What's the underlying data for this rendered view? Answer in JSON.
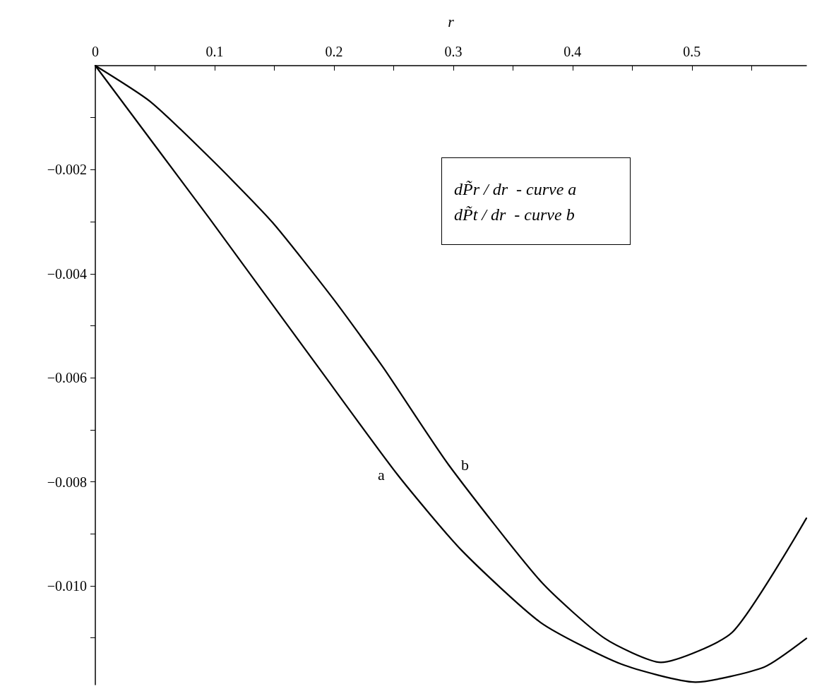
{
  "chart_data": {
    "type": "line",
    "xlabel": "r",
    "xlim": [
      0,
      0.596
    ],
    "ylim": [
      -0.0119,
      0
    ],
    "xticks": [
      0,
      {
        "value": 0.05,
        "label": null
      },
      0.1,
      {
        "value": 0.15,
        "label": null
      },
      0.2,
      {
        "value": 0.25,
        "label": null
      },
      0.3,
      {
        "value": 0.35,
        "label": null
      },
      0.4,
      {
        "value": 0.45,
        "label": null
      },
      0.5,
      {
        "value": 0.55,
        "label": null
      }
    ],
    "yticks": [
      {
        "value": -0.001,
        "label": null
      },
      {
        "value": -0.002,
        "label": "−0.002"
      },
      {
        "value": -0.003,
        "label": null
      },
      {
        "value": -0.004,
        "label": "−0.004"
      },
      {
        "value": -0.005,
        "label": null
      },
      {
        "value": -0.006,
        "label": "−0.006"
      },
      {
        "value": -0.007,
        "label": null
      },
      {
        "value": -0.008,
        "label": "−0.008"
      },
      {
        "value": -0.009,
        "label": null
      },
      {
        "value": -0.01,
        "label": "−0.010"
      },
      {
        "value": -0.011,
        "label": null
      }
    ],
    "grid": false,
    "legend": false,
    "marker": "none",
    "line_style": "solid",
    "annotations": [
      "dP̃r / dr  - curve a",
      "dP̃t / dr  - curve b"
    ],
    "series": [
      {
        "name": "a",
        "color": "#000000",
        "x": [
          0,
          0.056,
          0.0954,
          0.1873,
          0.2532,
          0.3067,
          0.3736,
          0.4404,
          0.503,
          0.5607,
          0.596
        ],
        "values": [
          0,
          -0.00172,
          -0.00293,
          -0.00581,
          -0.00786,
          -0.00931,
          -0.01071,
          -0.0115,
          -0.01185,
          -0.01156,
          -0.01101
        ]
      },
      {
        "name": "b",
        "color": "#000000",
        "x": [
          0,
          0.046,
          0.0994,
          0.1487,
          0.2,
          0.2415,
          0.296,
          0.3736,
          0.427,
          0.474,
          0.534,
          0.596
        ],
        "values": [
          0,
          -0.00069,
          -0.00185,
          -0.00302,
          -0.0045,
          -0.00581,
          -0.00767,
          -0.00992,
          -0.01101,
          -0.01147,
          -0.01089,
          -0.0087
        ]
      }
    ]
  }
}
